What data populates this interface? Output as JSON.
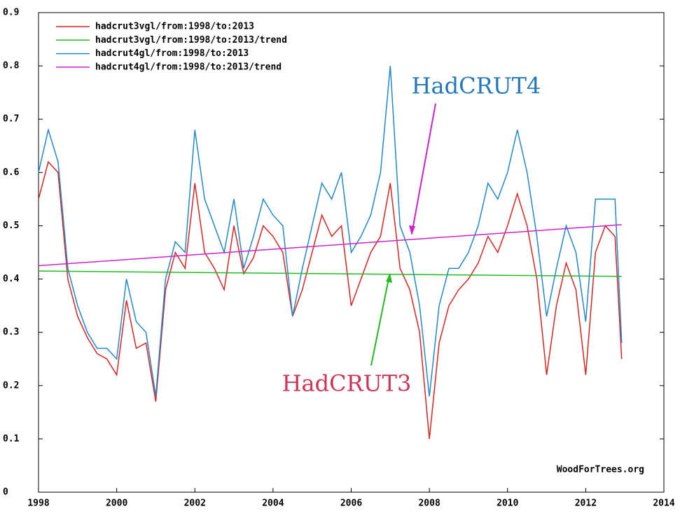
{
  "chart_data": {
    "type": "line",
    "xlim": [
      1998,
      2014
    ],
    "xticks": [
      1998,
      2000,
      2002,
      2004,
      2006,
      2008,
      2010,
      2012,
      2014
    ],
    "ylim": [
      0,
      0.9
    ],
    "yticks": [
      0,
      0.1,
      0.2,
      0.3,
      0.4,
      0.5,
      0.6,
      0.7,
      0.8,
      0.9
    ],
    "legend": "upper left",
    "series": [
      {
        "name": "hadcrut3vgl/from:1998/to:2013",
        "color": "#dd2222",
        "x": [
          1998,
          1998.25,
          1998.5,
          1998.75,
          1999,
          1999.25,
          1999.5,
          1999.75,
          2000,
          2000.25,
          2000.5,
          2000.75,
          2001,
          2001.25,
          2001.5,
          2001.75,
          2002,
          2002.25,
          2002.5,
          2002.75,
          2003,
          2003.25,
          2003.5,
          2003.75,
          2004,
          2004.25,
          2004.5,
          2004.75,
          2005,
          2005.25,
          2005.5,
          2005.75,
          2006,
          2006.25,
          2006.5,
          2006.75,
          2007,
          2007.25,
          2007.5,
          2007.75,
          2008,
          2008.25,
          2008.5,
          2008.75,
          2009,
          2009.25,
          2009.5,
          2009.75,
          2010,
          2010.25,
          2010.5,
          2010.75,
          2011,
          2011.25,
          2011.5,
          2011.75,
          2012,
          2012.25,
          2012.5,
          2012.75,
          2012.92
        ],
        "values": [
          0.55,
          0.62,
          0.6,
          0.4,
          0.33,
          0.29,
          0.26,
          0.25,
          0.22,
          0.36,
          0.27,
          0.28,
          0.17,
          0.38,
          0.45,
          0.42,
          0.58,
          0.45,
          0.42,
          0.38,
          0.5,
          0.41,
          0.44,
          0.5,
          0.48,
          0.45,
          0.33,
          0.38,
          0.45,
          0.52,
          0.48,
          0.5,
          0.35,
          0.4,
          0.45,
          0.48,
          0.58,
          0.42,
          0.38,
          0.3,
          0.1,
          0.28,
          0.35,
          0.38,
          0.4,
          0.43,
          0.48,
          0.45,
          0.5,
          0.56,
          0.5,
          0.4,
          0.22,
          0.35,
          0.43,
          0.38,
          0.22,
          0.45,
          0.5,
          0.48,
          0.25
        ]
      },
      {
        "name": "hadcrut3vgl/from:1998/to:2013/trend",
        "color": "#22bb22",
        "x": [
          1998,
          2012.92
        ],
        "values": [
          0.415,
          0.405
        ]
      },
      {
        "name": "hadcrut4gl/from:1998/to:2013",
        "color": "#2288cc",
        "x": [
          1998,
          1998.25,
          1998.5,
          1998.75,
          1999,
          1999.25,
          1999.5,
          1999.75,
          2000,
          2000.25,
          2000.5,
          2000.75,
          2001,
          2001.25,
          2001.5,
          2001.75,
          2002,
          2002.25,
          2002.5,
          2002.75,
          2003,
          2003.25,
          2003.5,
          2003.75,
          2004,
          2004.25,
          2004.5,
          2004.75,
          2005,
          2005.25,
          2005.5,
          2005.75,
          2006,
          2006.25,
          2006.5,
          2006.75,
          2007,
          2007.25,
          2007.5,
          2007.75,
          2008,
          2008.25,
          2008.5,
          2008.75,
          2009,
          2009.25,
          2009.5,
          2009.75,
          2010,
          2010.25,
          2010.5,
          2010.75,
          2011,
          2011.25,
          2011.5,
          2011.75,
          2012,
          2012.25,
          2012.5,
          2012.75,
          2012.92
        ],
        "values": [
          0.6,
          0.68,
          0.62,
          0.42,
          0.35,
          0.3,
          0.27,
          0.27,
          0.25,
          0.4,
          0.32,
          0.3,
          0.18,
          0.4,
          0.47,
          0.45,
          0.68,
          0.55,
          0.5,
          0.45,
          0.55,
          0.42,
          0.48,
          0.55,
          0.52,
          0.5,
          0.33,
          0.42,
          0.5,
          0.58,
          0.55,
          0.6,
          0.45,
          0.48,
          0.52,
          0.6,
          0.8,
          0.5,
          0.45,
          0.35,
          0.18,
          0.35,
          0.42,
          0.42,
          0.45,
          0.5,
          0.58,
          0.55,
          0.6,
          0.68,
          0.6,
          0.48,
          0.33,
          0.42,
          0.5,
          0.45,
          0.32,
          0.55,
          0.55,
          0.55,
          0.28
        ]
      },
      {
        "name": "hadcrut4gl/from:1998/to:2013/trend",
        "color": "#cc22cc",
        "x": [
          1998,
          2012.92
        ],
        "values": [
          0.425,
          0.502
        ]
      }
    ],
    "annotations": [
      "HadCRUT4",
      "HadCRUT3",
      "WoodForTrees.org"
    ]
  }
}
